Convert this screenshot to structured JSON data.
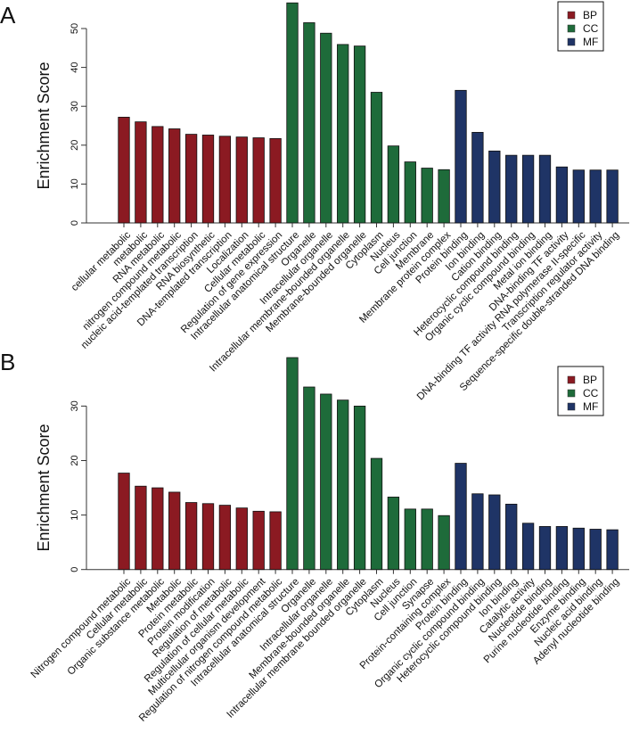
{
  "colors": {
    "BP": "#8b1a22",
    "CC": "#1e6b3a",
    "MF": "#1f3466"
  },
  "chart_data": [
    {
      "type": "bar",
      "panel_label": "A",
      "ylabel": "Enrichment Score",
      "xlabel": "",
      "ylim": [
        0,
        57
      ],
      "yticks": [
        0,
        10,
        20,
        30,
        40,
        50
      ],
      "grid": false,
      "legend": {
        "position": "top-right",
        "entries": [
          "BP",
          "CC",
          "MF"
        ]
      },
      "categories": [
        "cellular metabolic",
        "metabolic",
        "RNA metabolic",
        "nitrogen compound metabolic",
        "nucleic acid-templated transcription",
        "RNA biosynthetic",
        "DNA-templated transcription",
        "Localization",
        "Cellular metabolic",
        "Regulation of gene expression",
        "Intracellular anatomical structure",
        "Organelle",
        "Intracellular organelle",
        "Intracellular membrane-bounded organelle",
        "Membrane-bounded organelle",
        "Cytoplasm",
        "Nucleus",
        "Cell junction",
        "Membrane",
        "Membrane protein complex",
        "Protein binding",
        "Ion binding",
        "Cation binding",
        "Heterocyclic compound binding",
        "Organic cyclic compound binding",
        "Metal ion binding",
        "DNA-binding TF activity",
        "DNA-binding TF activity RNA polymerase II-specific",
        "Transcription regulator activity",
        "Sequence-specific double-stranded DNA binding"
      ],
      "groups": [
        "BP",
        "BP",
        "BP",
        "BP",
        "BP",
        "BP",
        "BP",
        "BP",
        "BP",
        "BP",
        "CC",
        "CC",
        "CC",
        "CC",
        "CC",
        "CC",
        "CC",
        "CC",
        "CC",
        "CC",
        "MF",
        "MF",
        "MF",
        "MF",
        "MF",
        "MF",
        "MF",
        "MF",
        "MF",
        "MF"
      ],
      "values": [
        27.2,
        26.0,
        24.8,
        24.2,
        22.8,
        22.6,
        22.3,
        22.1,
        21.9,
        21.7,
        56.6,
        51.5,
        48.8,
        45.9,
        45.5,
        33.6,
        19.8,
        15.7,
        14.1,
        13.7,
        34.1,
        23.3,
        18.5,
        17.4,
        17.4,
        17.4,
        14.4,
        13.6,
        13.6,
        13.6
      ]
    },
    {
      "type": "bar",
      "panel_label": "B",
      "ylabel": "Enrichment Score",
      "xlabel": "",
      "ylim": [
        0,
        39
      ],
      "yticks": [
        0,
        10,
        20,
        30
      ],
      "grid": false,
      "legend": {
        "position": "top-right",
        "entries": [
          "BP",
          "CC",
          "MF"
        ]
      },
      "categories": [
        "Nitrogen compound metabolic",
        "Cellular metabolic",
        "Organic substance metabolic",
        "Metabolic",
        "Protein metabolic",
        "Protein modification",
        "Regulation of metabolic",
        "Regulation of cellular metabolic",
        "Multicellular organism development",
        "Regulation of nitrogen compound metabolic",
        "Intracellular anatomical structure",
        "Organelle",
        "Intracellular organelle",
        "Membrane-bounded organelle",
        "Intracellular membrane bounded organelle",
        "Cytoplasm",
        "Nucleus",
        "Cell junction",
        "Synapse",
        "Protein-containing complex",
        "Protein binding",
        "Organic cyclic compound binding",
        "Heterocyclic compound binding",
        "Ion binding",
        "Catalytic activity",
        "Nucleotide binding",
        "Purine nucleotide binding",
        "Enzyme binding",
        "Nucleic acid binding",
        "Adenyl nucleotide binding"
      ],
      "groups": [
        "BP",
        "BP",
        "BP",
        "BP",
        "BP",
        "BP",
        "BP",
        "BP",
        "BP",
        "BP",
        "CC",
        "CC",
        "CC",
        "CC",
        "CC",
        "CC",
        "CC",
        "CC",
        "CC",
        "CC",
        "MF",
        "MF",
        "MF",
        "MF",
        "MF",
        "MF",
        "MF",
        "MF",
        "MF",
        "MF"
      ],
      "values": [
        17.7,
        15.3,
        15.0,
        14.2,
        12.3,
        12.1,
        11.8,
        11.3,
        10.7,
        10.6,
        38.9,
        33.5,
        32.2,
        31.1,
        30.0,
        20.4,
        13.3,
        11.1,
        11.1,
        9.9,
        19.5,
        13.9,
        13.7,
        12.0,
        8.5,
        7.9,
        7.9,
        7.6,
        7.4,
        7.3
      ]
    }
  ]
}
